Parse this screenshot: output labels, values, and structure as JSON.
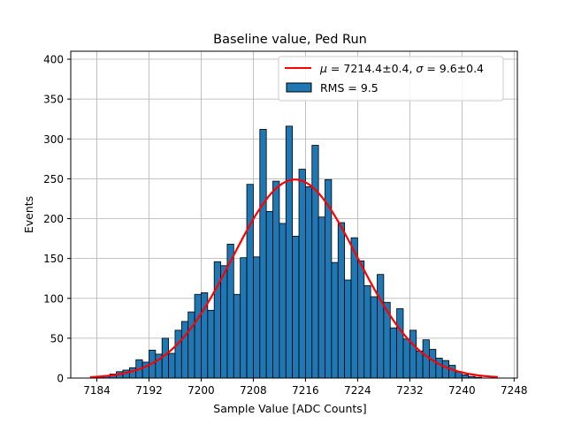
{
  "chart_data": {
    "type": "bar",
    "title": "Baseline value, Ped Run",
    "xlabel": "Sample Value [ADC Counts]",
    "ylabel": "Events",
    "xlim": [
      7180,
      7248.5
    ],
    "ylim": [
      0,
      410
    ],
    "xticks": [
      7184,
      7192,
      7200,
      7208,
      7216,
      7224,
      7232,
      7240,
      7248
    ],
    "yticks": [
      0,
      50,
      100,
      150,
      200,
      250,
      300,
      350,
      400
    ],
    "grid": true,
    "legend_position": "top-right",
    "bin_width": 1,
    "bins": [
      7183,
      7184,
      7185,
      7186,
      7187,
      7188,
      7189,
      7190,
      7191,
      7192,
      7193,
      7194,
      7195,
      7196,
      7197,
      7198,
      7199,
      7200,
      7201,
      7202,
      7203,
      7204,
      7205,
      7206,
      7207,
      7208,
      7209,
      7210,
      7211,
      7212,
      7213,
      7214,
      7215,
      7216,
      7217,
      7218,
      7219,
      7220,
      7221,
      7222,
      7223,
      7224,
      7225,
      7226,
      7227,
      7228,
      7229,
      7230,
      7231,
      7232,
      7233,
      7234,
      7235,
      7236,
      7237,
      7238,
      7239,
      7240,
      7241,
      7242,
      7243,
      7244,
      7245
    ],
    "series": [
      {
        "name": "RMS = 9.5",
        "kind": "histogram",
        "color": "#1f77b4",
        "edgecolor": "#000000",
        "values": [
          1,
          2,
          3,
          5,
          8,
          10,
          13,
          23,
          20,
          35,
          30,
          50,
          31,
          60,
          71,
          83,
          105,
          107,
          85,
          146,
          141,
          168,
          105,
          151,
          243,
          152,
          312,
          209,
          247,
          194,
          316,
          178,
          262,
          240,
          292,
          202,
          249,
          145,
          195,
          123,
          176,
          147,
          116,
          102,
          130,
          95,
          63,
          87,
          49,
          60,
          34,
          48,
          36,
          25,
          22,
          16,
          8,
          4,
          2,
          1,
          0,
          0,
          0
        ]
      },
      {
        "name": "μ = 7214.4±0.4, σ = 9.6±0.4",
        "kind": "gaussian-fit",
        "color": "#ff0000",
        "mu": 7214.4,
        "sigma": 9.6,
        "amplitude": 249,
        "x_range": [
          7183,
          7245.5
        ]
      }
    ]
  }
}
